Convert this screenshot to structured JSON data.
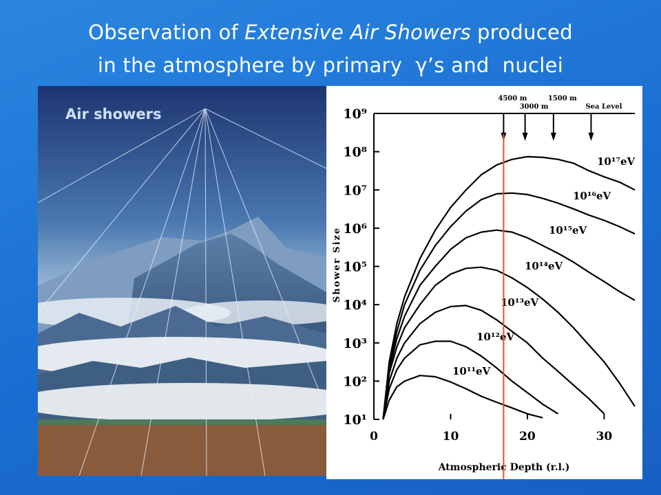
{
  "slide": {
    "title": {
      "before": "Observation of",
      "italic": "Extensive Air Showers",
      "after": "produced",
      "line2": "in the atmosphere by primary  γ’s and  nuclei"
    }
  },
  "illustration": {
    "label": "Air showers"
  },
  "chart_data": {
    "type": "line",
    "y_label": "Shower Size",
    "x_label": "Atmospheric Depth (r.l.)",
    "log_y": true,
    "color": "#000000",
    "xlim": [
      0,
      34
    ],
    "xticks": [
      0,
      10,
      20,
      30
    ],
    "ylim": [
      10,
      1000000000
    ],
    "yticks": [
      {
        "value": 10,
        "label": "10¹"
      },
      {
        "value": 100,
        "label": "10²"
      },
      {
        "value": 1000,
        "label": "10³"
      },
      {
        "value": 10000,
        "label": "10⁴"
      },
      {
        "value": 100000,
        "label": "10⁵"
      },
      {
        "value": 1000000,
        "label": "10⁶"
      },
      {
        "value": 10000000,
        "label": "10⁷"
      },
      {
        "value": 100000000,
        "label": "10⁸"
      },
      {
        "value": 1000000000,
        "label": "10⁹"
      }
    ],
    "x": [
      1.2,
      2,
      3,
      4,
      6,
      8,
      10,
      12,
      14,
      16,
      18,
      20,
      22,
      24,
      26,
      28,
      30,
      32,
      34
    ],
    "series": [
      {
        "name": "10¹¹eV",
        "color": "#000000",
        "values": [
          10,
          32,
          71,
          100,
          140,
          130,
          95,
          63,
          40,
          28,
          20,
          14,
          11,
          null,
          null,
          null,
          null,
          null,
          null
        ]
      },
      {
        "name": "10¹²eV",
        "color": "#000000",
        "values": [
          10,
          63,
          200,
          400,
          890,
          1100,
          1100,
          790,
          450,
          220,
          100,
          50,
          25,
          14,
          null,
          null,
          null,
          null,
          null
        ]
      },
      {
        "name": "10¹³eV",
        "color": "#000000",
        "values": [
          10,
          100,
          400,
          1000,
          3200,
          6300,
          8900,
          9500,
          7100,
          4000,
          2000,
          1000,
          400,
          180,
          79,
          35,
          14,
          null,
          null
        ]
      },
      {
        "name": "10¹⁴eV",
        "color": "#000000",
        "values": [
          10,
          160,
          790,
          2500,
          10000,
          32000,
          63000,
          89000,
          95000,
          79000,
          50000,
          28000,
          14000,
          6300,
          2500,
          890,
          320,
          89,
          22
        ]
      },
      {
        "name": "10¹⁵eV",
        "color": "#000000",
        "values": [
          10,
          200,
          1300,
          5000,
          32000,
          100000,
          280000,
          560000,
          790000,
          890000,
          790000,
          560000,
          350000,
          220000,
          130000,
          71000,
          40000,
          22000,
          13000
        ]
      },
      {
        "name": "10¹⁶eV",
        "color": "#000000",
        "values": [
          10,
          250,
          2000,
          10000,
          79000,
          350000,
          1100000,
          2800000,
          5600000,
          7900000,
          8300000,
          7600000,
          6000000,
          4500000,
          3200000,
          2200000,
          1600000,
          1100000,
          710000
        ]
      },
      {
        "name": "10¹⁷eV",
        "color": "#000000",
        "values": [
          10,
          320,
          3200,
          16000,
          160000,
          890000,
          3500000,
          10000000,
          25000000,
          45000000,
          63000000,
          74000000,
          71000000,
          63000000,
          50000000,
          32000000,
          22000000,
          16000000,
          10000000
        ]
      }
    ],
    "annotations": [
      {
        "label": "4500 m",
        "x": 16.9
      },
      {
        "label": "3000 m",
        "x": 19.7
      },
      {
        "label": "1500 m",
        "x": 23.4
      },
      {
        "label": "Sea Level",
        "x": 28.3
      }
    ],
    "marker_line": {
      "x": 16.9,
      "color": "#e0502a"
    }
  }
}
